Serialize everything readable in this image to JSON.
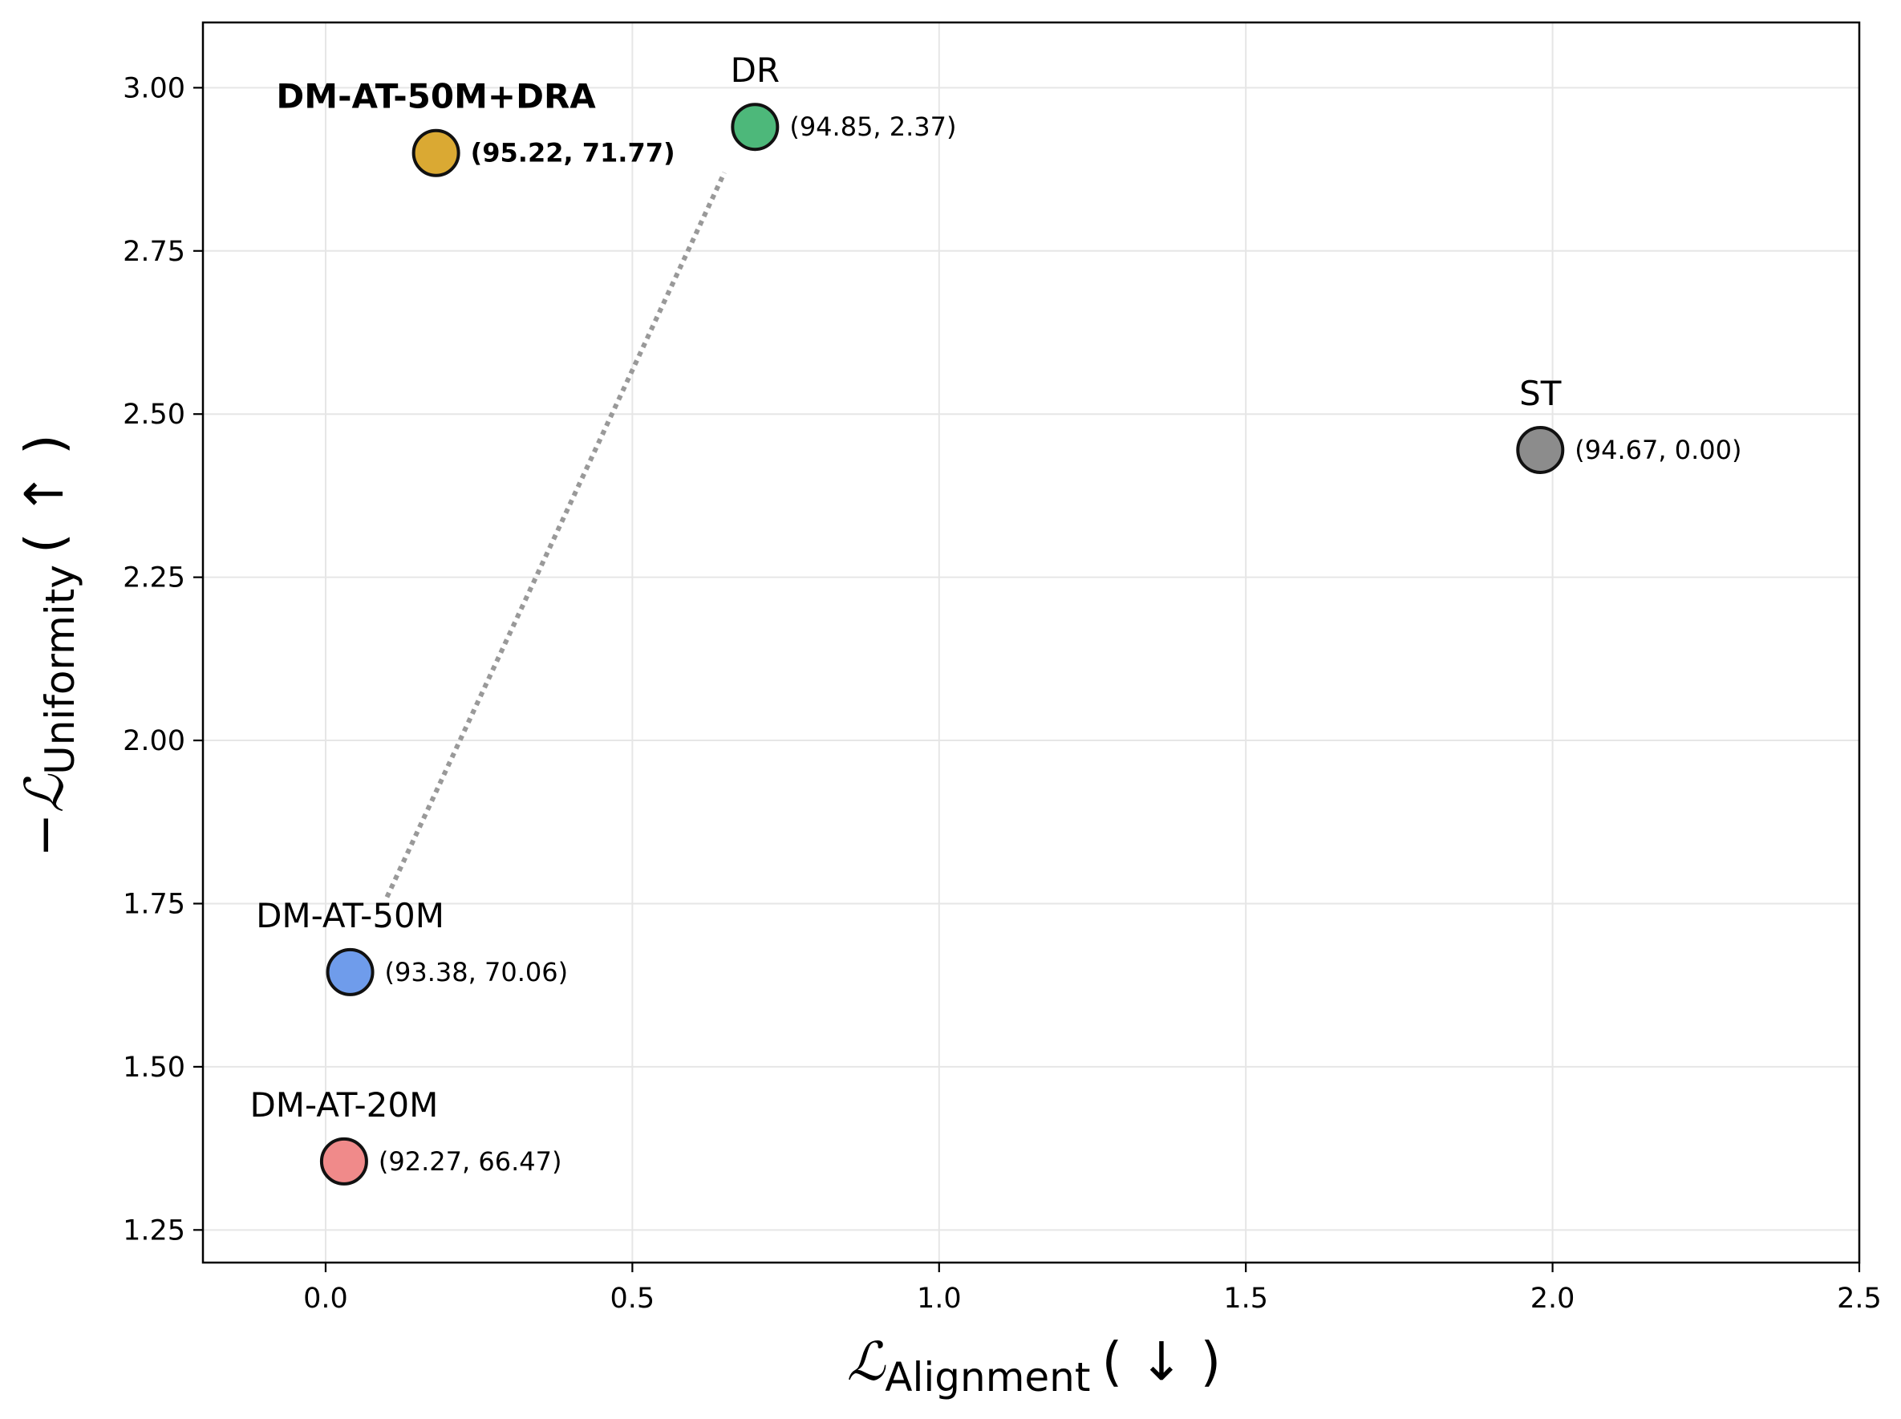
{
  "chart_data": {
    "type": "scatter",
    "title": "",
    "xlabel": {
      "symbol": "ℒ",
      "subscript": "Alignment",
      "arrow": "( ↓ )"
    },
    "ylabel": {
      "prefix": "−",
      "symbol": "ℒ",
      "subscript": "Uniformity",
      "arrow": "( ↑ )"
    },
    "xlim": [
      -0.2,
      2.5
    ],
    "ylim": [
      1.2,
      3.1
    ],
    "xticks": [
      0.0,
      0.5,
      1.0,
      1.5,
      2.0,
      2.5
    ],
    "xtick_labels": [
      "0.0",
      "0.5",
      "1.0",
      "1.5",
      "2.0",
      "2.5"
    ],
    "yticks": [
      1.25,
      1.5,
      1.75,
      2.0,
      2.25,
      2.5,
      2.75,
      3.0
    ],
    "ytick_labels": [
      "1.25",
      "1.50",
      "1.75",
      "2.00",
      "2.25",
      "2.50",
      "2.75",
      "3.00"
    ],
    "grid": true,
    "points": [
      {
        "name": "DM-AT-50M+DRA",
        "x": 0.18,
        "y": 2.9,
        "color": "#DAA933",
        "annotation": "(95.22, 71.77)",
        "bold": true
      },
      {
        "name": "DR",
        "x": 0.7,
        "y": 2.94,
        "color": "#4DB87A",
        "annotation": "(94.85, 2.37)",
        "bold": false
      },
      {
        "name": "ST",
        "x": 1.98,
        "y": 2.445,
        "color": "#8C8C8C",
        "annotation": "(94.67, 0.00)",
        "bold": false
      },
      {
        "name": "DM-AT-50M",
        "x": 0.04,
        "y": 1.645,
        "color": "#6F9CEB",
        "annotation": "(93.38, 70.06)",
        "bold": false
      },
      {
        "name": "DM-AT-20M",
        "x": 0.03,
        "y": 1.355,
        "color": "#F08A8A",
        "annotation": "(92.27, 66.47)",
        "bold": false
      }
    ],
    "connector": {
      "from": [
        0.1,
        1.76
      ],
      "to": [
        0.65,
        2.87
      ],
      "style": "dotted",
      "color": "#999999"
    }
  }
}
